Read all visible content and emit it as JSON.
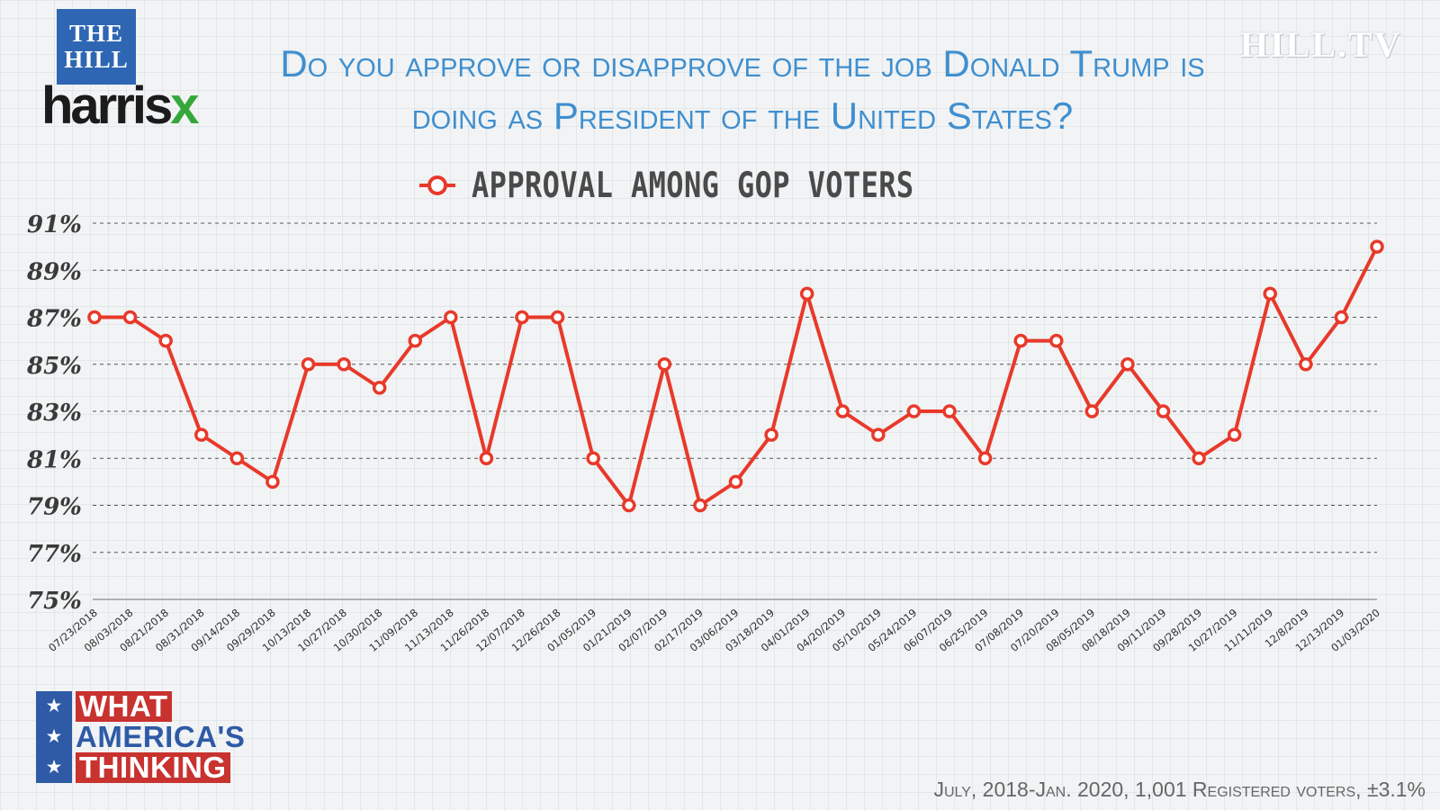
{
  "branding": {
    "hill_logo_line1": "THE",
    "hill_logo_line2": "HILL",
    "harrisx_main": "harris",
    "harrisx_x": "x",
    "watermark": "HILL.TV",
    "what_americas_thinking": [
      "WHAT",
      "AMERICA'S",
      "THINKING"
    ],
    "star_icon": "★"
  },
  "colors": {
    "series": "#e8392a",
    "title": "#3f8fcf",
    "hill_blue": "#2e66b4",
    "harrisx_green": "#35a73a",
    "wat_red": "#c8322f"
  },
  "footnote": "July, 2018-Jan. 2020, 1,001 Registered voters, ±3.1%",
  "chart_data": {
    "type": "line",
    "title": "Do you approve or disapprove of the job Donald Trump is doing as President of the United States?",
    "legend": "APPROVAL AMONG GOP VOTERS",
    "legend_position": "top-center",
    "grid": true,
    "ylim": [
      75,
      91
    ],
    "yticks": [
      "91%",
      "89%",
      "87%",
      "85%",
      "83%",
      "81%",
      "79%",
      "77%",
      "75%"
    ],
    "categories": [
      "07/23/2018",
      "08/03/2018",
      "08/21/2018",
      "08/31/2018",
      "09/14/2018",
      "09/29/2018",
      "10/13/2018",
      "10/27/2018",
      "10/30/2018",
      "11/09/2018",
      "11/13/2018",
      "11/26/2018",
      "12/07/2018",
      "12/26/2018",
      "01/05/2019",
      "01/21/2019",
      "02/07/2019",
      "02/17/2019",
      "03/06/2019",
      "03/18/2019",
      "04/01/2019",
      "04/20/2019",
      "05/10/2019",
      "05/24/2019",
      "06/07/2019",
      "06/25/2019",
      "07/08/2019",
      "07/20/2019",
      "08/05/2019",
      "08/18/2019",
      "09/11/2019",
      "09/28/2019",
      "10/27/2019",
      "11/11/2019",
      "12/8/2019",
      "12/13/2019",
      "01/03/2020"
    ],
    "series": [
      {
        "name": "Approval among GOP voters",
        "values": [
          87,
          87,
          86,
          82,
          81,
          80,
          85,
          85,
          84,
          86,
          87,
          81,
          87,
          87,
          81,
          79,
          85,
          79,
          80,
          82,
          88,
          83,
          82,
          83,
          83,
          81,
          86,
          86,
          83,
          85,
          83,
          81,
          82,
          88,
          85,
          87,
          90
        ]
      }
    ]
  }
}
